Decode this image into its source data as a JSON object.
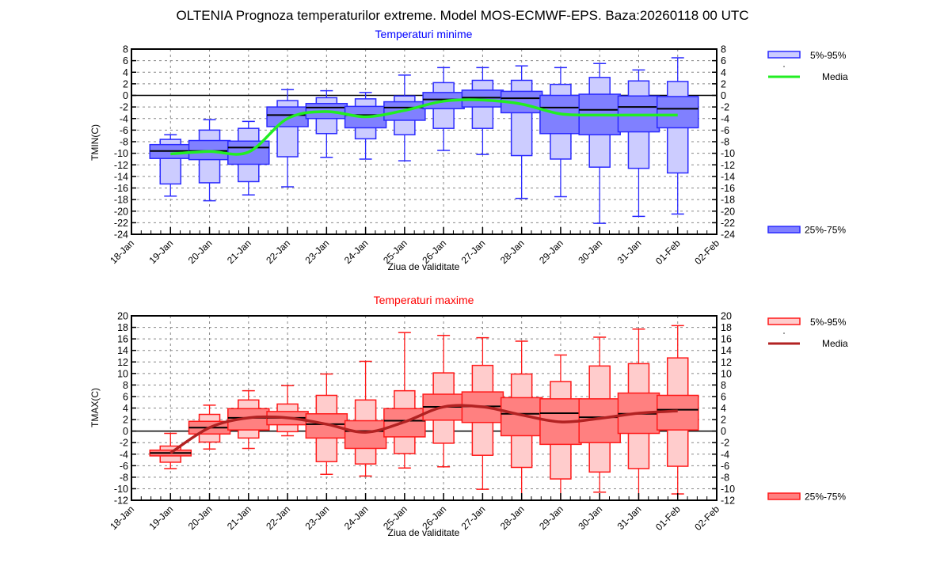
{
  "title": "OLTENIA  Prognoza temperaturilor extreme.  Model MOS-ECMWF-EPS. Baza:20260118 00 UTC",
  "chart_data": [
    {
      "type": "boxplot",
      "title": "Temperaturi minime",
      "title_color": "#0000ff",
      "ylabel": "TMIN(C)",
      "xlabel": "Ziua de validitate",
      "ylim": [
        -24,
        8
      ],
      "yticks": [
        8,
        6,
        4,
        2,
        0,
        -2,
        -4,
        -6,
        -8,
        -10,
        -12,
        -14,
        -16,
        -18,
        -20,
        -22,
        -24
      ],
      "x_tick_labels": [
        "18-Jan",
        "19-Jan",
        "20-Jan",
        "21-Jan",
        "22-Jan",
        "23-Jan",
        "24-Jan",
        "25-Jan",
        "26-Jan",
        "27-Jan",
        "28-Jan",
        "29-Jan",
        "30-Jan",
        "31-Jan",
        "01-Feb",
        "02-Feb"
      ],
      "grid": true,
      "colors": {
        "border": "#2a2aff",
        "inner": "#8080ff",
        "outer": "#ccccff",
        "mean": "#22ee22",
        "median": "#000000"
      },
      "legend": {
        "outer": "5%-95%",
        "mean": "Media",
        "inner": "25%-75%",
        "placement": "right"
      },
      "categories": [
        "19-Jan",
        "20-Jan",
        "21-Jan",
        "22-Jan",
        "23-Jan",
        "24-Jan",
        "25-Jan",
        "26-Jan",
        "27-Jan",
        "28-Jan",
        "29-Jan",
        "30-Jan",
        "31-Jan",
        "01-Feb"
      ],
      "min": [
        -17.4,
        -18.2,
        -17.2,
        -15.8,
        -10.7,
        -11.0,
        -11.3,
        -9.5,
        -10.2,
        -17.8,
        -17.5,
        -22.1,
        -20.9,
        -20.5
      ],
      "p5": [
        -15.3,
        -15.1,
        -14.9,
        -10.6,
        -6.6,
        -7.5,
        -6.8,
        -5.7,
        -5.7,
        -10.4,
        -11.0,
        -12.4,
        -12.6,
        -13.4
      ],
      "p25": [
        -10.9,
        -11.1,
        -11.9,
        -5.4,
        -4.0,
        -5.6,
        -4.3,
        -2.3,
        -2.0,
        -3.0,
        -6.6,
        -6.8,
        -6.3,
        -5.6
      ],
      "median": [
        -9.6,
        -9.6,
        -9.0,
        -3.4,
        -2.1,
        -3.4,
        -2.1,
        -0.7,
        -0.4,
        -0.5,
        -2.1,
        -2.5,
        -2.0,
        -2.3
      ],
      "p75": [
        -8.5,
        -7.8,
        -7.9,
        -2.0,
        -1.4,
        -1.9,
        -1.1,
        0.5,
        0.9,
        0.7,
        0.0,
        0.2,
        -0.1,
        -0.2
      ],
      "p95": [
        -7.6,
        -6.0,
        -5.7,
        -0.9,
        -0.4,
        -0.6,
        -0.1,
        2.2,
        2.6,
        2.6,
        1.9,
        3.1,
        2.5,
        2.4
      ],
      "max": [
        -6.8,
        -4.2,
        -4.5,
        1.0,
        0.8,
        0.5,
        3.5,
        4.8,
        4.8,
        5.1,
        4.8,
        5.5,
        4.4,
        6.5
      ],
      "mean": [
        -10.1,
        -9.7,
        -9.8,
        -4.0,
        -2.8,
        -3.7,
        -2.6,
        -1.0,
        -0.8,
        -1.5,
        -3.2,
        -3.4,
        -3.4,
        -3.4
      ]
    },
    {
      "type": "boxplot",
      "title": "Temperaturi maxime",
      "title_color": "#ff0000",
      "ylabel": "TMAX(C)",
      "xlabel": "Ziua de validitate",
      "ylim": [
        -12,
        20
      ],
      "yticks": [
        20,
        18,
        16,
        14,
        12,
        10,
        8,
        6,
        4,
        2,
        0,
        -2,
        -4,
        -6,
        -8,
        -10,
        -12
      ],
      "x_tick_labels": [
        "18-Jan",
        "19-Jan",
        "20-Jan",
        "21-Jan",
        "22-Jan",
        "23-Jan",
        "24-Jan",
        "25-Jan",
        "26-Jan",
        "27-Jan",
        "28-Jan",
        "29-Jan",
        "30-Jan",
        "31-Jan",
        "01-Feb",
        "02-Feb"
      ],
      "grid": true,
      "colors": {
        "border": "#ff1a1a",
        "inner": "#ff8080",
        "outer": "#ffcccc",
        "mean": "#b22222",
        "median": "#000000"
      },
      "legend": {
        "outer": "5%-95%",
        "mean": "Media",
        "inner": "25%-75%",
        "placement": "right"
      },
      "categories": [
        "19-Jan",
        "20-Jan",
        "21-Jan",
        "22-Jan",
        "23-Jan",
        "24-Jan",
        "25-Jan",
        "26-Jan",
        "27-Jan",
        "28-Jan",
        "29-Jan",
        "30-Jan",
        "31-Jan",
        "01-Feb"
      ],
      "min": [
        -6.5,
        -3.1,
        -3.0,
        -0.8,
        -7.5,
        -7.8,
        -6.4,
        -6.2,
        -10.1,
        -12.0,
        -12.0,
        -10.6,
        -12.0,
        -10.9
      ],
      "p5": [
        -5.4,
        -1.9,
        -1.2,
        -0.1,
        -5.3,
        -5.7,
        -3.9,
        -2.1,
        -4.2,
        -6.3,
        -8.3,
        -7.1,
        -6.5,
        -6.1
      ],
      "p25": [
        -4.3,
        -0.5,
        0.2,
        1.1,
        -1.2,
        -3.0,
        -1.0,
        1.9,
        1.5,
        -0.8,
        -2.3,
        -2.0,
        -0.4,
        0.2
      ],
      "median": [
        -3.8,
        0.6,
        2.3,
        2.3,
        1.2,
        0.0,
        1.8,
        4.2,
        4.3,
        3.0,
        3.1,
        2.4,
        3.0,
        3.7
      ],
      "p75": [
        -3.3,
        1.7,
        3.9,
        3.4,
        3.0,
        1.8,
        3.9,
        6.4,
        6.8,
        5.8,
        5.6,
        5.6,
        6.6,
        6.2
      ],
      "p95": [
        -2.6,
        2.9,
        5.4,
        4.7,
        6.2,
        5.4,
        7.0,
        10.1,
        11.4,
        9.9,
        8.6,
        11.3,
        11.7,
        12.7
      ],
      "max": [
        -0.4,
        4.5,
        7.0,
        7.9,
        9.9,
        12.1,
        17.1,
        16.6,
        16.2,
        15.6,
        13.2,
        16.3,
        17.7,
        18.3
      ],
      "mean": [
        -3.8,
        0.6,
        2.3,
        2.3,
        1.2,
        -0.2,
        1.6,
        4.2,
        4.2,
        2.8,
        1.6,
        2.2,
        3.1,
        3.5
      ]
    }
  ]
}
